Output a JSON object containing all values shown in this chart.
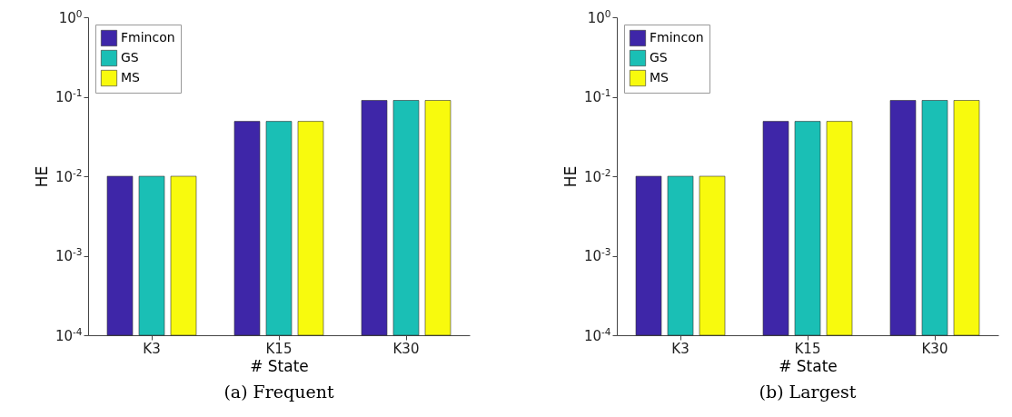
{
  "chart_data": [
    {
      "type": "bar",
      "title": "(a) Frequent",
      "xlabel": "# State",
      "ylabel": "HE",
      "categories": [
        "K3",
        "K15",
        "K30"
      ],
      "series": [
        {
          "name": "Fmincon",
          "color": "#3e26a8",
          "values": [
            0.01,
            0.049,
            0.09
          ]
        },
        {
          "name": "GS",
          "color": "#1abfb5",
          "values": [
            0.01,
            0.049,
            0.09
          ]
        },
        {
          "name": "MS",
          "color": "#f8fa0d",
          "values": [
            0.01,
            0.049,
            0.09
          ]
        }
      ],
      "log": "y",
      "ylim": [
        0.0001,
        1
      ],
      "yticks": [
        {
          "value": 0.0001,
          "label": "10$^{-4}$"
        },
        {
          "value": 0.001,
          "label": "10$^{-3}$"
        },
        {
          "value": 0.01,
          "label": "10$^{-2}$"
        },
        {
          "value": 0.1,
          "label": "10$^{-1}$"
        },
        {
          "value": 1,
          "label": "10$^{0}$"
        }
      ],
      "grid": false,
      "legend": "top left"
    },
    {
      "type": "bar",
      "title": "(b) Largest",
      "xlabel": "# State",
      "ylabel": "HE",
      "categories": [
        "K3",
        "K15",
        "K30"
      ],
      "series": [
        {
          "name": "Fmincon",
          "color": "#3e26a8",
          "values": [
            0.01,
            0.049,
            0.09
          ]
        },
        {
          "name": "GS",
          "color": "#1abfb5",
          "values": [
            0.01,
            0.049,
            0.09
          ]
        },
        {
          "name": "MS",
          "color": "#f8fa0d",
          "values": [
            0.01,
            0.049,
            0.09
          ]
        }
      ],
      "log": "y",
      "ylim": [
        0.0001,
        1
      ],
      "yticks": [
        {
          "value": 0.0001,
          "label": "10$^{-4}$"
        },
        {
          "value": 0.001,
          "label": "10$^{-3}$"
        },
        {
          "value": 0.01,
          "label": "10$^{-2}$"
        },
        {
          "value": 0.1,
          "label": "10$^{-1}$"
        },
        {
          "value": 1,
          "label": "10$^{0}$"
        }
      ],
      "grid": false,
      "legend": "top left"
    }
  ]
}
